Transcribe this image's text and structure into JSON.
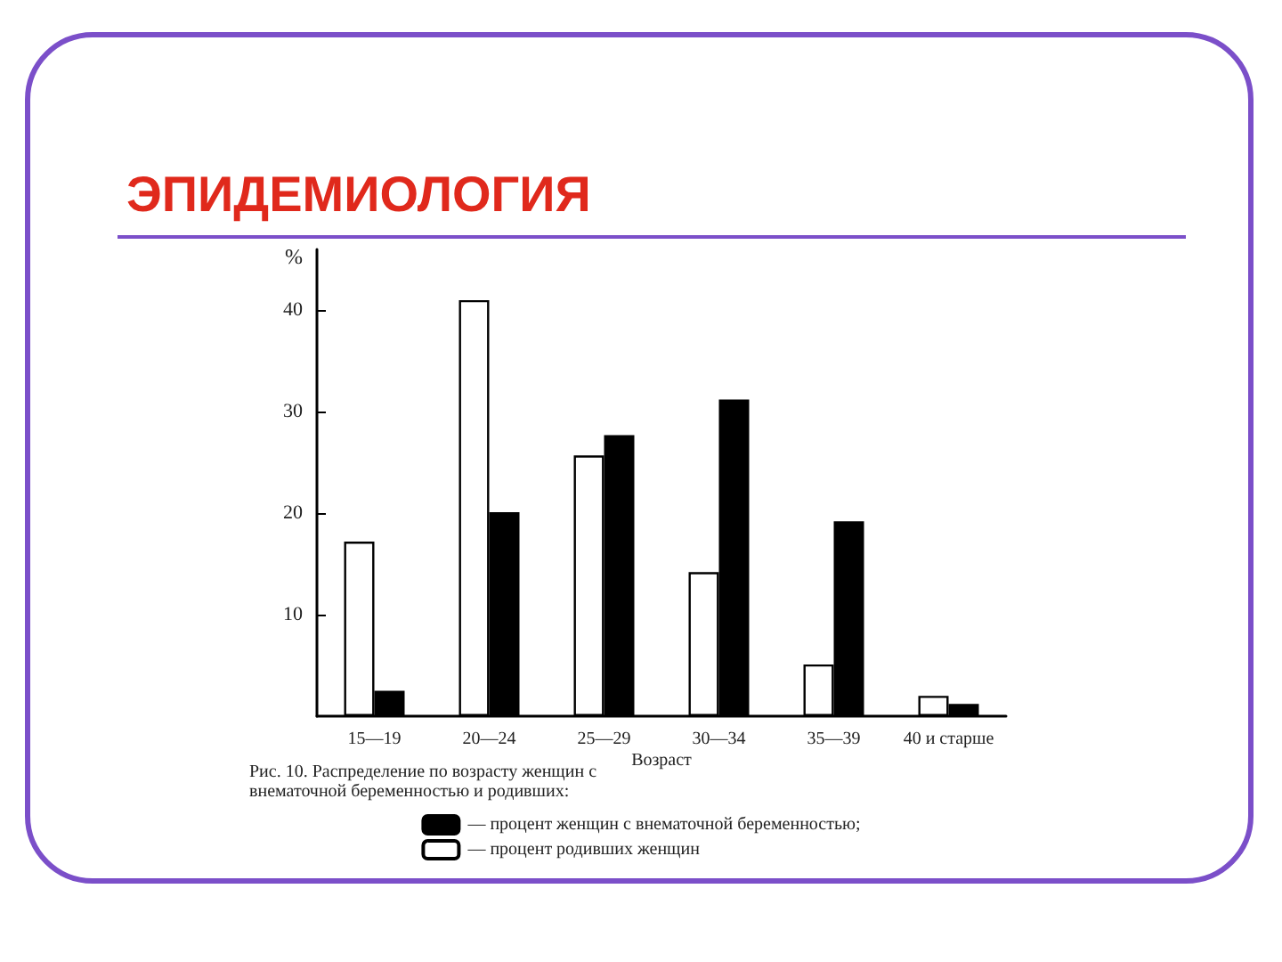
{
  "chart_data": {
    "type": "bar",
    "title": "ЭПИДЕМИОЛОГИЯ",
    "xlabel": "Возраст",
    "ylabel": "%",
    "categories": [
      "15—19",
      "20—24",
      "25—29",
      "30—34",
      "35—39",
      "40 и старше"
    ],
    "series": [
      {
        "name": "— процент родивших женщин",
        "color": "#ffffff",
        "values": [
          17.2,
          41,
          25.7,
          14.2,
          5.1,
          2.0
        ]
      },
      {
        "name": "— процент женщин с внематочной беременностью;",
        "color": "#000000",
        "values": [
          2.5,
          20.1,
          27.7,
          31.2,
          19.2,
          1.2
        ]
      }
    ],
    "ylim": [
      0,
      46
    ],
    "yticks": [
      10,
      20,
      30,
      40
    ],
    "grid": false,
    "legend": "bottom",
    "annotations": [
      "Рис. 10. Распределение по возрасту женщин с внематочной беременностью и родивших:"
    ]
  }
}
